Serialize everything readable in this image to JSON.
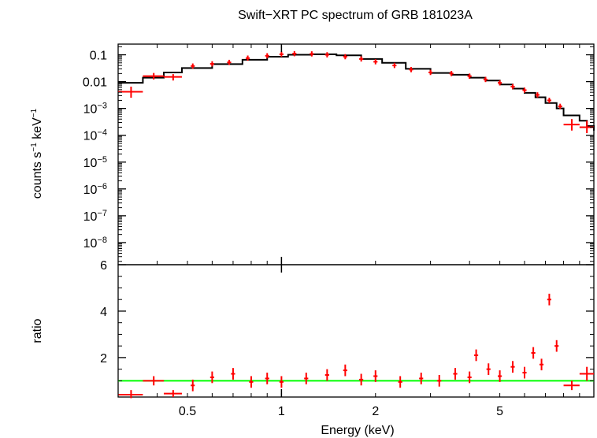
{
  "chart_data": [
    {
      "type": "line",
      "panel": "top",
      "title": "Swift−XRT PC spectrum of GRB 181023A",
      "xlabel": "",
      "ylabel_main": "counts s",
      "ylabel_sup1": "−1",
      "ylabel_mid": " keV",
      "ylabel_sup2": "−1",
      "xscale": "log",
      "yscale": "log",
      "xlim": [
        0.3,
        10
      ],
      "ylim": [
        1.5e-09,
        0.25
      ],
      "y_ticks": [
        {
          "value": 0.1,
          "label": "0.1"
        },
        {
          "value": 0.01,
          "label": "0.01"
        },
        {
          "value": 0.001,
          "label": "10−3"
        },
        {
          "value": 0.0001,
          "label": "10−4"
        },
        {
          "value": 1e-05,
          "label": "10−5"
        },
        {
          "value": 1e-06,
          "label": "10−6"
        },
        {
          "value": 1e-07,
          "label": "10−7"
        },
        {
          "value": 1e-08,
          "label": "10−8"
        }
      ],
      "series": [
        {
          "name": "data",
          "color": "#ff0000",
          "points": [
            {
              "x": 0.33,
              "xerr": [
                0.3,
                0.36
              ],
              "y": 0.0042,
              "yerr": [
                0.0025,
                0.0065
              ]
            },
            {
              "x": 0.39,
              "xerr": [
                0.36,
                0.42
              ],
              "y": 0.016,
              "yerr": [
                0.012,
                0.021
              ]
            },
            {
              "x": 0.45,
              "xerr": [
                0.42,
                0.48
              ],
              "y": 0.015,
              "yerr": [
                0.011,
                0.019
              ]
            },
            {
              "x": 0.52,
              "y": 0.038
            },
            {
              "x": 0.6,
              "y": 0.046
            },
            {
              "x": 0.68,
              "y": 0.052
            },
            {
              "x": 0.78,
              "y": 0.075
            },
            {
              "x": 0.9,
              "y": 0.092
            },
            {
              "x": 1.0,
              "y": 0.105
            },
            {
              "x": 1.1,
              "y": 0.11
            },
            {
              "x": 1.25,
              "y": 0.108
            },
            {
              "x": 1.4,
              "y": 0.1
            },
            {
              "x": 1.6,
              "y": 0.085
            },
            {
              "x": 1.8,
              "y": 0.07
            },
            {
              "x": 2.0,
              "y": 0.055
            },
            {
              "x": 2.3,
              "y": 0.04
            },
            {
              "x": 2.6,
              "y": 0.028
            },
            {
              "x": 3.0,
              "y": 0.022
            },
            {
              "x": 3.5,
              "y": 0.02
            },
            {
              "x": 4.0,
              "y": 0.016
            },
            {
              "x": 4.5,
              "y": 0.012
            },
            {
              "x": 5.0,
              "y": 0.009
            },
            {
              "x": 5.5,
              "y": 0.0065
            },
            {
              "x": 6.0,
              "y": 0.0048
            },
            {
              "x": 6.6,
              "y": 0.0032
            },
            {
              "x": 7.2,
              "y": 0.002
            },
            {
              "x": 7.8,
              "y": 0.0012
            },
            {
              "x": 8.5,
              "xerr": [
                8.0,
                9.0
              ],
              "y": 0.00025,
              "yerr": [
                0.00015,
                0.0004
              ]
            },
            {
              "x": 9.5,
              "xerr": [
                9.0,
                10.0
              ],
              "y": 0.0002,
              "yerr": [
                0.00012,
                0.00035
              ]
            }
          ]
        },
        {
          "name": "model",
          "color": "#000000",
          "points": [
            {
              "x": 0.3,
              "y": 0.009
            },
            {
              "x": 0.36,
              "y": 0.014
            },
            {
              "x": 0.42,
              "y": 0.022
            },
            {
              "x": 0.48,
              "y": 0.032
            },
            {
              "x": 0.6,
              "y": 0.045
            },
            {
              "x": 0.75,
              "y": 0.065
            },
            {
              "x": 0.9,
              "y": 0.085
            },
            {
              "x": 1.05,
              "y": 0.1
            },
            {
              "x": 1.25,
              "y": 0.105
            },
            {
              "x": 1.5,
              "y": 0.095
            },
            {
              "x": 1.8,
              "y": 0.07
            },
            {
              "x": 2.1,
              "y": 0.05
            },
            {
              "x": 2.5,
              "y": 0.03
            },
            {
              "x": 3.0,
              "y": 0.021
            },
            {
              "x": 3.5,
              "y": 0.018
            },
            {
              "x": 4.0,
              "y": 0.014
            },
            {
              "x": 4.5,
              "y": 0.011
            },
            {
              "x": 5.0,
              "y": 0.0078
            },
            {
              "x": 5.5,
              "y": 0.0055
            },
            {
              "x": 6.0,
              "y": 0.0038
            },
            {
              "x": 6.5,
              "y": 0.0026
            },
            {
              "x": 7.0,
              "y": 0.0016
            },
            {
              "x": 7.6,
              "y": 0.001
            },
            {
              "x": 8.0,
              "y": 0.00055
            },
            {
              "x": 9.0,
              "y": 0.00035
            },
            {
              "x": 9.5,
              "y": 0.00022
            },
            {
              "x": 10.0,
              "y": 0.00015
            }
          ]
        }
      ]
    },
    {
      "type": "scatter",
      "panel": "bottom",
      "xlabel": "Energy (keV)",
      "ylabel": "ratio",
      "xscale": "log",
      "yscale": "linear",
      "xlim": [
        0.3,
        10
      ],
      "ylim": [
        0.3,
        6
      ],
      "x_ticks": [
        {
          "value": 0.5,
          "label": "0.5"
        },
        {
          "value": 1,
          "label": "1"
        },
        {
          "value": 2,
          "label": "2"
        },
        {
          "value": 5,
          "label": "5"
        }
      ],
      "y_ticks": [
        {
          "value": 2,
          "label": "2"
        },
        {
          "value": 4,
          "label": "4"
        },
        {
          "value": 6,
          "label": "6"
        }
      ],
      "reference_line": {
        "y": 1,
        "color": "#00ff00"
      },
      "series": [
        {
          "name": "ratio",
          "color": "#ff0000",
          "points": [
            {
              "x": 0.33,
              "xerr": [
                0.3,
                0.36
              ],
              "y": 0.4,
              "yerr": [
                0.25,
                0.6
              ]
            },
            {
              "x": 0.39,
              "xerr": [
                0.36,
                0.42
              ],
              "y": 1.0,
              "yerr": [
                0.8,
                1.2
              ]
            },
            {
              "x": 0.45,
              "xerr": [
                0.42,
                0.48
              ],
              "y": 0.45,
              "yerr": [
                0.3,
                0.6
              ]
            },
            {
              "x": 0.52,
              "y": 0.8
            },
            {
              "x": 0.6,
              "y": 1.15
            },
            {
              "x": 0.7,
              "y": 1.3
            },
            {
              "x": 0.8,
              "y": 0.95
            },
            {
              "x": 0.9,
              "y": 1.1
            },
            {
              "x": 1.0,
              "y": 0.95
            },
            {
              "x": 1.2,
              "y": 1.1
            },
            {
              "x": 1.4,
              "y": 1.25
            },
            {
              "x": 1.6,
              "y": 1.45
            },
            {
              "x": 1.8,
              "y": 1.05
            },
            {
              "x": 2.0,
              "y": 1.2
            },
            {
              "x": 2.4,
              "y": 0.95
            },
            {
              "x": 2.8,
              "y": 1.1
            },
            {
              "x": 3.2,
              "y": 1.0
            },
            {
              "x": 3.6,
              "y": 1.3
            },
            {
              "x": 4.0,
              "y": 1.15
            },
            {
              "x": 4.2,
              "y": 2.1
            },
            {
              "x": 4.6,
              "y": 1.5
            },
            {
              "x": 5.0,
              "y": 1.2
            },
            {
              "x": 5.5,
              "y": 1.6
            },
            {
              "x": 6.0,
              "y": 1.35
            },
            {
              "x": 6.4,
              "y": 2.2
            },
            {
              "x": 6.8,
              "y": 1.7
            },
            {
              "x": 7.2,
              "y": 4.5
            },
            {
              "x": 7.6,
              "y": 2.5
            },
            {
              "x": 8.5,
              "xerr": [
                8.0,
                9.0
              ],
              "y": 0.8,
              "yerr": [
                0.6,
                1.0
              ]
            },
            {
              "x": 9.5,
              "xerr": [
                9.0,
                10.0
              ],
              "y": 1.3,
              "yerr": [
                1.0,
                1.6
              ]
            }
          ]
        }
      ]
    }
  ]
}
